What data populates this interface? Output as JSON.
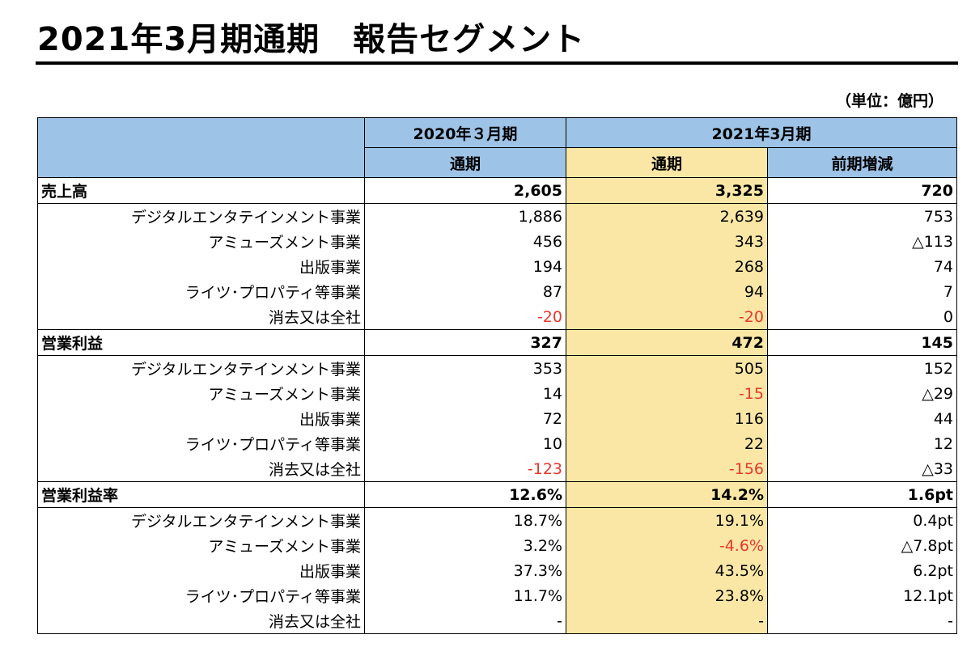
{
  "title": "2021年3月期通期　報告セグメント",
  "unit_note": "（単位：億円）",
  "header": {
    "prev_year": "2020年３月期",
    "cur_year": "2021年3月期",
    "prev_full": "通期",
    "cur_full": "通期",
    "diff": "前期増減"
  },
  "sections": [
    {
      "name": "売上高",
      "total": {
        "prev": "2,605",
        "cur": "3,325",
        "diff": "720"
      },
      "rows": [
        {
          "label": "デジタルエンタテインメント事業",
          "prev": "1,886",
          "cur": "2,639",
          "diff": "753"
        },
        {
          "label": "アミューズメント事業",
          "prev": "456",
          "cur": "343",
          "diff": "△113"
        },
        {
          "label": "出版事業",
          "prev": "194",
          "cur": "268",
          "diff": "74"
        },
        {
          "label": "ライツ･プロパティ等事業",
          "prev": "87",
          "cur": "94",
          "diff": "7"
        },
        {
          "label": "消去又は全社",
          "prev": "-20",
          "cur": "-20",
          "diff": "0"
        }
      ]
    },
    {
      "name": "営業利益",
      "total": {
        "prev": "327",
        "cur": "472",
        "diff": "145"
      },
      "rows": [
        {
          "label": "デジタルエンタテインメント事業",
          "prev": "353",
          "cur": "505",
          "diff": "152"
        },
        {
          "label": "アミューズメント事業",
          "prev": "14",
          "cur": "-15",
          "diff": "△29"
        },
        {
          "label": "出版事業",
          "prev": "72",
          "cur": "116",
          "diff": "44"
        },
        {
          "label": "ライツ･プロパティ等事業",
          "prev": "10",
          "cur": "22",
          "diff": "12"
        },
        {
          "label": "消去又は全社",
          "prev": "-123",
          "cur": "-156",
          "diff": "△33"
        }
      ]
    },
    {
      "name": "営業利益率",
      "total": {
        "prev": "12.6%",
        "cur": "14.2%",
        "diff": "1.6pt"
      },
      "rows": [
        {
          "label": "デジタルエンタテインメント事業",
          "prev": "18.7%",
          "cur": "19.1%",
          "diff": "0.4pt"
        },
        {
          "label": "アミューズメント事業",
          "prev": "3.2%",
          "cur": "-4.6%",
          "diff": "△7.8pt"
        },
        {
          "label": "出版事業",
          "prev": "37.3%",
          "cur": "43.5%",
          "diff": "6.2pt"
        },
        {
          "label": "ライツ･プロパティ等事業",
          "prev": "11.7%",
          "cur": "23.8%",
          "diff": "12.1pt"
        },
        {
          "label": "消去又は全社",
          "prev": "-",
          "cur": "-",
          "diff": "-"
        }
      ]
    }
  ],
  "colors": {
    "header_blue": "#9dc3e6",
    "current_yellow": "#fae7a5",
    "negative_red": "#e8372c"
  }
}
